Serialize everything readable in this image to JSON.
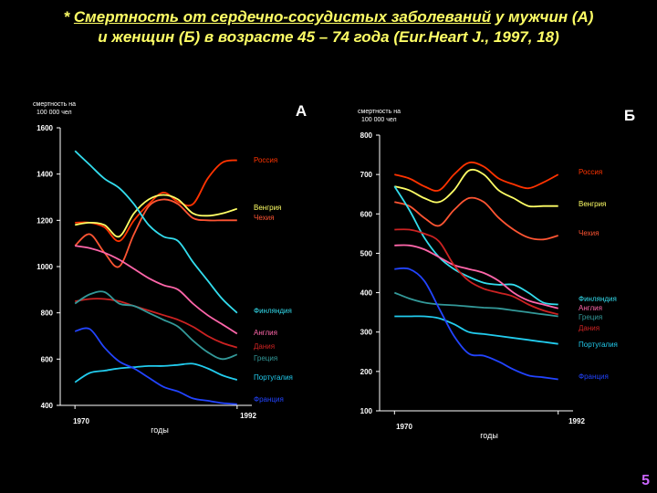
{
  "title": {
    "star": "* ",
    "underlined": "Смертность от сердечно-сосудистых заболеваний",
    "rest_line1": " у мужчин (А)",
    "line2": "и женщин (Б) в возрасте 45 – 74 года (Eur.Heart J., 1997, 18)"
  },
  "slide_number": "5",
  "chart_data": [
    {
      "type": "line",
      "panel": "А",
      "ylabel": "смертность на 100 000 чел",
      "xlabel": "годы",
      "ylim": [
        400,
        1600
      ],
      "xlim": [
        1968,
        1994
      ],
      "y_ticks": [
        400,
        600,
        800,
        1000,
        1200,
        1400,
        1600
      ],
      "x_ticks": [
        1970,
        1992
      ],
      "series": [
        {
          "name": "Россия",
          "color": "#ff3300",
          "x": [
            1970,
            1972,
            1974,
            1976,
            1978,
            1980,
            1982,
            1984,
            1986,
            1988,
            1990,
            1992
          ],
          "values": [
            1190,
            1190,
            1170,
            1110,
            1200,
            1270,
            1320,
            1280,
            1270,
            1380,
            1450,
            1460
          ]
        },
        {
          "name": "Венгрия",
          "color": "#ffff66",
          "x": [
            1970,
            1972,
            1974,
            1976,
            1978,
            1980,
            1982,
            1984,
            1986,
            1988,
            1990,
            1992
          ],
          "values": [
            1180,
            1190,
            1180,
            1130,
            1230,
            1290,
            1310,
            1290,
            1230,
            1220,
            1230,
            1250
          ]
        },
        {
          "name": "Чехия",
          "color": "#ff5533",
          "x": [
            1970,
            1972,
            1974,
            1976,
            1978,
            1980,
            1982,
            1984,
            1986,
            1988,
            1990,
            1992
          ],
          "values": [
            1090,
            1140,
            1060,
            1000,
            1140,
            1260,
            1290,
            1270,
            1210,
            1200,
            1200,
            1200
          ]
        },
        {
          "name": "Финляндия",
          "color": "#33ddee",
          "x": [
            1970,
            1972,
            1974,
            1976,
            1978,
            1980,
            1982,
            1984,
            1986,
            1988,
            1990,
            1992
          ],
          "values": [
            1500,
            1440,
            1380,
            1340,
            1270,
            1180,
            1130,
            1110,
            1020,
            940,
            860,
            800
          ]
        },
        {
          "name": "Англия",
          "color": "#ff66aa",
          "x": [
            1970,
            1972,
            1974,
            1976,
            1978,
            1980,
            1982,
            1984,
            1986,
            1988,
            1990,
            1992
          ],
          "values": [
            1090,
            1080,
            1060,
            1030,
            990,
            950,
            920,
            900,
            840,
            790,
            750,
            710
          ]
        },
        {
          "name": "Дания",
          "color": "#cc2222",
          "x": [
            1970,
            1972,
            1974,
            1976,
            1978,
            1980,
            1982,
            1984,
            1986,
            1988,
            1990,
            1992
          ],
          "values": [
            850,
            860,
            860,
            850,
            830,
            810,
            790,
            770,
            740,
            700,
            670,
            650
          ]
        },
        {
          "name": "Греция",
          "color": "#339999",
          "x": [
            1970,
            1972,
            1974,
            1976,
            1978,
            1980,
            1982,
            1984,
            1986,
            1988,
            1990,
            1992
          ],
          "values": [
            840,
            880,
            890,
            840,
            830,
            800,
            770,
            740,
            680,
            630,
            600,
            620
          ]
        },
        {
          "name": "Португалия",
          "color": "#22ccee",
          "x": [
            1970,
            1972,
            1974,
            1976,
            1978,
            1980,
            1982,
            1984,
            1986,
            1988,
            1990,
            1992
          ],
          "values": [
            500,
            540,
            550,
            560,
            565,
            570,
            570,
            575,
            580,
            560,
            530,
            510
          ]
        },
        {
          "name": "Франция",
          "color": "#2244ff",
          "x": [
            1970,
            1972,
            1974,
            1976,
            1978,
            1980,
            1982,
            1984,
            1986,
            1988,
            1990,
            1992
          ],
          "values": [
            720,
            730,
            650,
            590,
            560,
            520,
            480,
            460,
            430,
            420,
            410,
            405
          ]
        }
      ]
    },
    {
      "type": "line",
      "panel": "Б",
      "ylabel": "смертность на 100 000 чел",
      "xlabel": "годы",
      "ylim": [
        100,
        800
      ],
      "xlim": [
        1968,
        1994
      ],
      "y_ticks": [
        100,
        200,
        300,
        400,
        500,
        600,
        700,
        800
      ],
      "x_ticks": [
        1970,
        1992
      ],
      "series": [
        {
          "name": "Россия",
          "color": "#ff3300",
          "x": [
            1970,
            1972,
            1974,
            1976,
            1978,
            1980,
            1982,
            1984,
            1986,
            1988,
            1990,
            1992
          ],
          "values": [
            700,
            690,
            670,
            660,
            700,
            730,
            720,
            690,
            675,
            665,
            680,
            700
          ]
        },
        {
          "name": "Венгрия",
          "color": "#ffff66",
          "x": [
            1970,
            1972,
            1974,
            1976,
            1978,
            1980,
            1982,
            1984,
            1986,
            1988,
            1990,
            1992
          ],
          "values": [
            670,
            660,
            640,
            630,
            660,
            710,
            700,
            660,
            640,
            620,
            620,
            620
          ]
        },
        {
          "name": "Чехия",
          "color": "#ff5533",
          "x": [
            1970,
            1972,
            1974,
            1976,
            1978,
            1980,
            1982,
            1984,
            1986,
            1988,
            1990,
            1992
          ],
          "values": [
            630,
            620,
            590,
            570,
            610,
            640,
            630,
            590,
            560,
            540,
            535,
            545
          ]
        },
        {
          "name": "Финляндия",
          "color": "#33ddee",
          "x": [
            1970,
            1972,
            1974,
            1976,
            1978,
            1980,
            1982,
            1984,
            1986,
            1988,
            1990,
            1992
          ],
          "values": [
            670,
            610,
            540,
            490,
            460,
            440,
            425,
            420,
            420,
            400,
            375,
            370
          ]
        },
        {
          "name": "Англия",
          "color": "#ff66aa",
          "x": [
            1970,
            1972,
            1974,
            1976,
            1978,
            1980,
            1982,
            1984,
            1986,
            1988,
            1990,
            1992
          ],
          "values": [
            520,
            520,
            510,
            490,
            470,
            460,
            450,
            430,
            400,
            380,
            370,
            360
          ]
        },
        {
          "name": "Дания",
          "color": "#cc2222",
          "x": [
            1970,
            1972,
            1974,
            1976,
            1978,
            1980,
            1982,
            1984,
            1986,
            1988,
            1990,
            1992
          ],
          "values": [
            560,
            560,
            550,
            530,
            470,
            430,
            410,
            400,
            390,
            370,
            355,
            345
          ]
        },
        {
          "name": "Греция",
          "color": "#339999",
          "x": [
            1970,
            1972,
            1974,
            1976,
            1978,
            1980,
            1982,
            1984,
            1986,
            1988,
            1990,
            1992
          ],
          "values": [
            400,
            385,
            375,
            370,
            368,
            365,
            362,
            360,
            355,
            350,
            345,
            340
          ]
        },
        {
          "name": "Португалия",
          "color": "#22ccee",
          "x": [
            1970,
            1972,
            1974,
            1976,
            1978,
            1980,
            1982,
            1984,
            1986,
            1988,
            1990,
            1992
          ],
          "values": [
            340,
            340,
            340,
            335,
            320,
            300,
            295,
            290,
            285,
            280,
            275,
            270
          ]
        },
        {
          "name": "Франция",
          "color": "#2244ff",
          "x": [
            1970,
            1972,
            1974,
            1976,
            1978,
            1980,
            1982,
            1984,
            1986,
            1988,
            1990,
            1992
          ],
          "values": [
            460,
            460,
            430,
            360,
            290,
            245,
            240,
            225,
            205,
            190,
            185,
            180
          ]
        }
      ]
    }
  ]
}
